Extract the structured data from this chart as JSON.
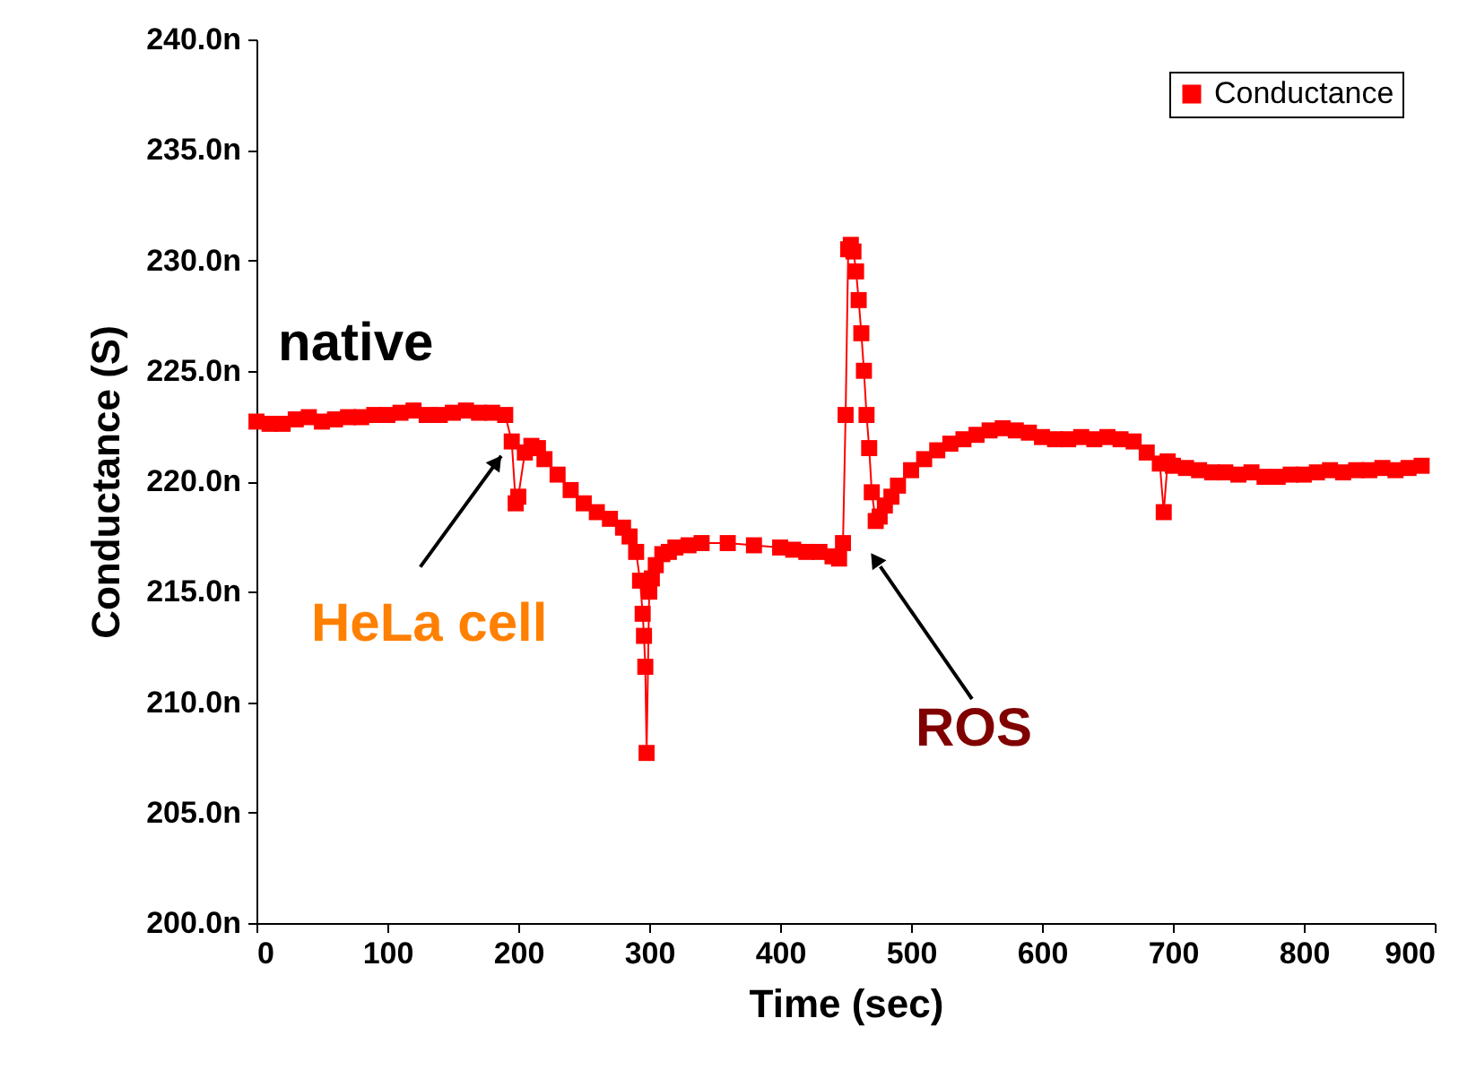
{
  "chart_data": {
    "type": "line",
    "xlabel": "Time (sec)",
    "ylabel": "Conductance (S)",
    "x": [
      0,
      10,
      20,
      30,
      40,
      50,
      60,
      70,
      80,
      90,
      100,
      110,
      120,
      130,
      140,
      150,
      160,
      170,
      180,
      190,
      195,
      198,
      200,
      205,
      210,
      215,
      220,
      230,
      240,
      250,
      260,
      270,
      280,
      285,
      290,
      293,
      295,
      296,
      297,
      298,
      300,
      302,
      305,
      310,
      315,
      320,
      330,
      340,
      360,
      380,
      400,
      410,
      420,
      430,
      440,
      445,
      448,
      450,
      452,
      454,
      456,
      458,
      460,
      462,
      464,
      466,
      468,
      470,
      473,
      476,
      480,
      485,
      490,
      500,
      510,
      520,
      530,
      540,
      550,
      560,
      570,
      580,
      590,
      600,
      610,
      620,
      630,
      640,
      650,
      660,
      670,
      680,
      690,
      693,
      696,
      700,
      710,
      720,
      730,
      740,
      750,
      760,
      770,
      780,
      790,
      800,
      810,
      820,
      830,
      840,
      850,
      860,
      870,
      880,
      890
    ],
    "series": [
      {
        "name": "Conductance",
        "color": "#ff0000",
        "values": [
          222.7,
          222.6,
          222.6,
          222.8,
          222.9,
          222.7,
          222.8,
          222.9,
          222.9,
          223.0,
          223.0,
          223.1,
          223.2,
          223.0,
          223.0,
          223.1,
          223.2,
          223.1,
          223.1,
          223.0,
          221.8,
          219.0,
          219.3,
          221.3,
          221.6,
          221.5,
          221.0,
          220.3,
          219.6,
          219.0,
          218.6,
          218.3,
          217.9,
          217.5,
          216.8,
          215.5,
          214.0,
          213.0,
          211.6,
          207.7,
          215.0,
          215.6,
          216.2,
          216.7,
          216.8,
          217.0,
          217.1,
          217.2,
          217.2,
          217.1,
          217.0,
          216.9,
          216.8,
          216.8,
          216.6,
          216.5,
          217.2,
          223.0,
          230.5,
          230.7,
          230.4,
          229.5,
          228.2,
          226.7,
          225.0,
          223.0,
          221.5,
          219.5,
          218.2,
          218.4,
          218.9,
          219.3,
          219.8,
          220.5,
          221.0,
          221.4,
          221.7,
          221.9,
          222.1,
          222.3,
          222.4,
          222.3,
          222.2,
          222.0,
          221.9,
          221.9,
          222.0,
          221.9,
          222.0,
          221.9,
          221.8,
          221.3,
          220.8,
          218.6,
          220.9,
          220.7,
          220.6,
          220.5,
          220.4,
          220.4,
          220.3,
          220.4,
          220.2,
          220.2,
          220.3,
          220.3,
          220.4,
          220.5,
          220.4,
          220.5,
          220.5,
          220.6,
          220.5,
          220.6,
          220.7
        ]
      }
    ],
    "marker": "square",
    "line_style": "solid",
    "legend": "top right",
    "grid": false,
    "xlim": [
      0,
      900
    ],
    "xticks": [
      0,
      100,
      200,
      300,
      400,
      500,
      600,
      700,
      800,
      900
    ],
    "ylim": [
      200,
      240
    ],
    "yticks": [
      {
        "value": 200,
        "label": "200.0n"
      },
      {
        "value": 205,
        "label": "205.0n"
      },
      {
        "value": 210,
        "label": "210.0n"
      },
      {
        "value": 215,
        "label": "215.0n"
      },
      {
        "value": 220,
        "label": "220.0n"
      },
      {
        "value": 225,
        "label": "225.0n"
      },
      {
        "value": 230,
        "label": "230.0n"
      },
      {
        "value": 235,
        "label": "235.0n"
      },
      {
        "value": 240,
        "label": "240.0n"
      }
    ],
    "annotations": [
      "native",
      {
        "text": "HeLa cell",
        "x": 195,
        "y": 221.8
      },
      "ROS"
    ]
  }
}
